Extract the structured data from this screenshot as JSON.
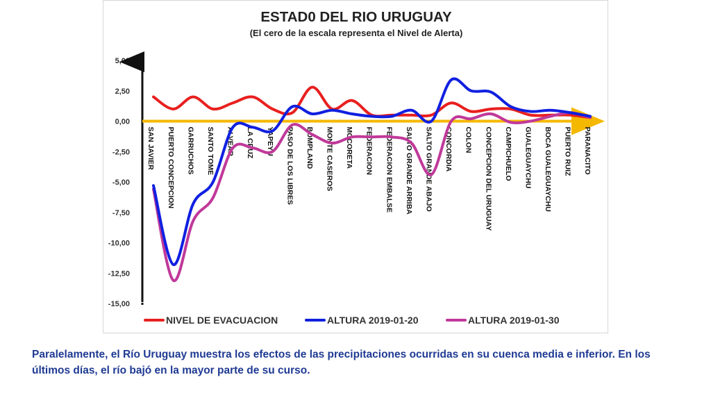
{
  "chart_data": {
    "type": "line",
    "title": "ESTAD0 DEL RIO URUGUAY",
    "subtitle": "(El cero de la escala representa el Nivel de Alerta)",
    "categories": [
      "SAN JAVIER",
      "PUERTO CONCEPCION",
      "GARRUCHOS",
      "SANTO TOME",
      "ALVEAR",
      "LA CRUZ",
      "YAPEYU",
      "PASO DE LOS LIBRES",
      "BOMPLAND",
      "MONTE CASEROS",
      "MOCORETA",
      "FEDERACION",
      "FEDERACION EMBALSE",
      "SALTO GRANDE ARRIBA",
      "SALTO GRANDE ABAJO",
      "CONCORDIA",
      "COLON",
      "CONCEPCION DEL URUGUAY",
      "CAMPICHUELO",
      "GUALEGUAYCHU",
      "BOCA GUALEGUAYCHU",
      "PUERTO RUIZ",
      "PARANACITO"
    ],
    "ylim": [
      -15,
      5
    ],
    "yticks": [
      "5,00",
      "2,50",
      "0,00",
      "-2,50",
      "-5,00",
      "-7,50",
      "-10,00",
      "-12,50",
      "-15,00"
    ],
    "ytick_values": [
      5,
      2.5,
      0,
      -2.5,
      -5,
      -7.5,
      -10,
      -12.5,
      -15
    ],
    "series": [
      {
        "name": "NIVEL DE EVACUACION",
        "color": "#e8201f",
        "values": [
          2.0,
          1.0,
          2.0,
          1.0,
          1.5,
          2.0,
          1.0,
          0.7,
          2.8,
          1.0,
          1.7,
          0.5,
          0.5,
          0.5,
          0.5,
          1.5,
          0.8,
          1.0,
          1.0,
          0.5,
          0.5,
          0.5,
          0.3
        ]
      },
      {
        "name": "ALTURA 2019-01-20",
        "color": "#1020e0",
        "values": [
          -5.3,
          -11.8,
          -6.8,
          -5.0,
          -0.5,
          -0.5,
          -0.8,
          1.2,
          0.6,
          0.9,
          0.6,
          0.4,
          0.4,
          0.9,
          0.0,
          3.4,
          2.5,
          2.4,
          1.2,
          0.8,
          0.9,
          0.7,
          0.4
        ]
      },
      {
        "name": "ALTURA 2019-01-30",
        "color": "#c0399a",
        "values": [
          -5.6,
          -13.1,
          -8.2,
          -6.3,
          -2.2,
          -2.2,
          -2.5,
          -0.3,
          -1.1,
          -1.8,
          -1.3,
          -1.3,
          -1.3,
          -1.8,
          -4.4,
          0.0,
          0.2,
          0.6,
          -0.1,
          0.0,
          0.4,
          0.7,
          0.3
        ]
      }
    ],
    "alert_line_color": "#f5b800",
    "axis_arrow_color": "#111111",
    "legend_position": "bottom",
    "grid": false
  },
  "caption": "Paralelamente, el Río Uruguay muestra los efectos de las precipitaciones ocurridas en su cuenca media e inferior. En los últimos días, el río bajó en la mayor parte de su curso."
}
